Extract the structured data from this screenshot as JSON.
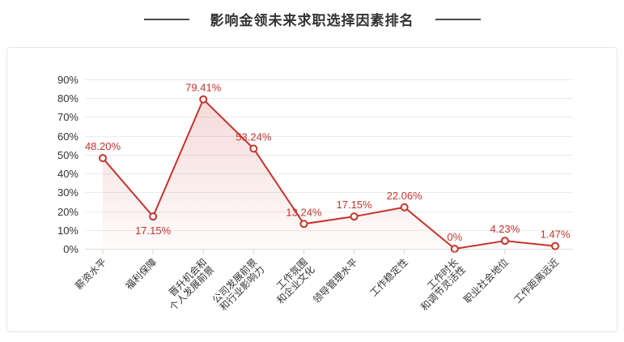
{
  "chart_data": {
    "type": "line",
    "title": "影响金领未来求职选择因素排名",
    "categories": [
      "薪资水平",
      "福利保障",
      "晋升机会和\n个人发展前景",
      "公司发展前景\n和行业影响力",
      "工作氛围\n和企业文化",
      "领导管理水平",
      "工作稳定性",
      "工作时长\n和调节灵活性",
      "职业社会地位",
      "工作距离远近"
    ],
    "values": [
      48.2,
      17.15,
      79.41,
      53.24,
      13.24,
      17.15,
      22.06,
      0,
      4.23,
      1.47
    ],
    "data_labels": [
      "48.20%",
      "17.15%",
      "79.41%",
      "53.24%",
      "13.24%",
      "17.15%",
      "22.06%",
      "0%",
      "4.23%",
      "1.47%"
    ],
    "labels_below": [
      1
    ],
    "xlabel": "",
    "ylabel": "",
    "y_ticks": [
      "0%",
      "10%",
      "20%",
      "30%",
      "40%",
      "50%",
      "60%",
      "70%",
      "80%",
      "90%"
    ],
    "ylim": [
      0,
      90
    ],
    "grid": true,
    "legend": false,
    "area": true,
    "colors": {
      "line": "#c5342c",
      "marker_fill": "#ffffff",
      "data_label": "#c5342c",
      "grid_line": "#ebebeb",
      "axis_line": "#dcdcdc",
      "tick": "#d0d0d0",
      "axis_text": "#333333",
      "title_text": "#333333"
    }
  }
}
